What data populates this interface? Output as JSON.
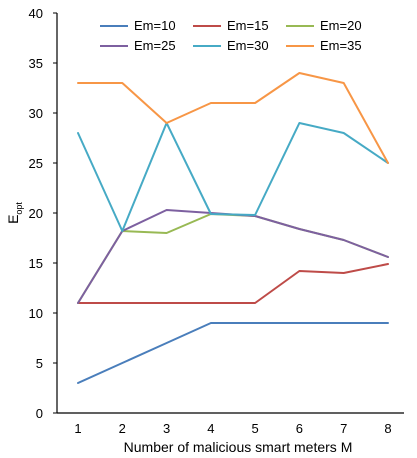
{
  "chart_data": {
    "type": "line",
    "x": [
      1,
      2,
      3,
      4,
      5,
      6,
      7,
      8
    ],
    "xlabel": "Number of malicious smart meters M",
    "ylabel": {
      "main": "E",
      "sub": "opt"
    },
    "xlim": [
      1,
      8
    ],
    "ylim": [
      0,
      40
    ],
    "yticks": [
      0,
      5,
      10,
      15,
      20,
      25,
      30,
      35,
      40
    ],
    "grid": false,
    "legend_position": "top",
    "series": [
      {
        "name": "Em=10",
        "color": "#4a7ebb",
        "values": [
          3,
          5,
          7,
          9,
          9,
          9,
          9,
          9
        ]
      },
      {
        "name": "Em=15",
        "color": "#be4b48",
        "values": [
          11,
          11,
          11,
          11,
          11,
          14.2,
          14,
          14.9
        ]
      },
      {
        "name": "Em=20",
        "color": "#98b954",
        "values": [
          11,
          18.2,
          18,
          19.9,
          19.7,
          18.4,
          17.3,
          15.6
        ]
      },
      {
        "name": "Em=25",
        "color": "#7d60a0",
        "values": [
          11,
          18.2,
          20.3,
          20,
          19.7,
          18.4,
          17.3,
          15.6
        ]
      },
      {
        "name": "Em=30",
        "color": "#46aac5",
        "values": [
          28,
          18.2,
          29,
          19.9,
          19.8,
          29,
          28,
          25
        ]
      },
      {
        "name": "Em=35",
        "color": "#f79646",
        "values": [
          33,
          33,
          29,
          31,
          31,
          34,
          33,
          25
        ]
      }
    ]
  }
}
